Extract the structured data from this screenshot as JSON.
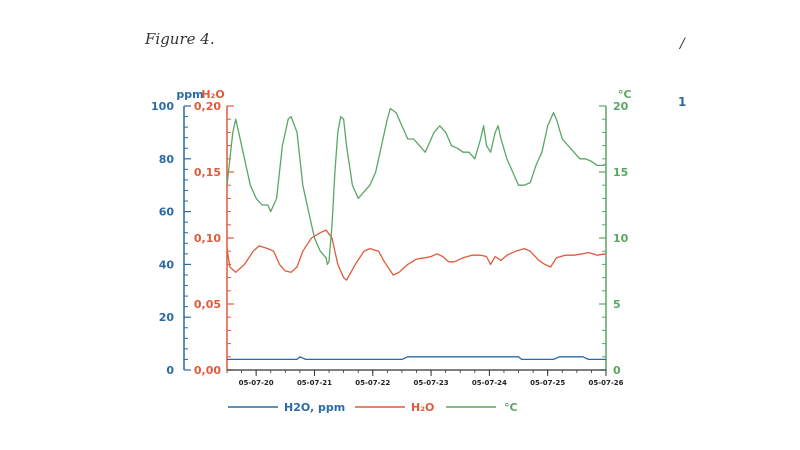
{
  "caption": "Figure 4.",
  "edge_marks": [
    "/",
    "1"
  ],
  "colors": {
    "ppm": "#2a6aa8",
    "h2o": "#e05a3a",
    "temp": "#5aa665",
    "axis_text_blue": "#2a6aa8"
  },
  "chart_data": {
    "type": "line",
    "title": "",
    "axes": {
      "ppm": {
        "unit": "ppm",
        "range": [
          0,
          100
        ],
        "ticks": [
          "0",
          "20",
          "40",
          "60",
          "80",
          "100"
        ]
      },
      "h2o": {
        "unit": "H₂O",
        "range": [
          0,
          0.2
        ],
        "ticks": [
          "0,00",
          "0,05",
          "0,10",
          "0,15",
          "0,20"
        ]
      },
      "temp": {
        "unit": "°C",
        "range": [
          0,
          20
        ],
        "ticks": [
          "0",
          "5",
          "10",
          "15",
          "20"
        ]
      }
    },
    "x": {
      "range": [
        0,
        6.5
      ],
      "ticks": [
        "05-07-20",
        "05-07-21",
        "05-07-22",
        "05-07-23",
        "05-07-24",
        "05-07-25",
        "05-07-26"
      ]
    },
    "series": [
      {
        "name": "H2O, ppm",
        "axis": "ppm",
        "color": "#2a6aa8",
        "points": [
          [
            0,
            4
          ],
          [
            1.2,
            4
          ],
          [
            1.25,
            5
          ],
          [
            1.35,
            4
          ],
          [
            3.0,
            4
          ],
          [
            3.1,
            5
          ],
          [
            5.0,
            5
          ],
          [
            5.05,
            4
          ],
          [
            5.6,
            4
          ],
          [
            5.7,
            5
          ],
          [
            6.1,
            5
          ],
          [
            6.2,
            4
          ],
          [
            6.5,
            4
          ]
        ]
      },
      {
        "name": "H₂O",
        "axis": "h2o",
        "color": "#e05a3a",
        "points": [
          [
            0,
            0.092
          ],
          [
            0.05,
            0.078
          ],
          [
            0.15,
            0.074
          ],
          [
            0.3,
            0.08
          ],
          [
            0.45,
            0.09
          ],
          [
            0.55,
            0.094
          ],
          [
            0.7,
            0.092
          ],
          [
            0.8,
            0.09
          ],
          [
            0.9,
            0.08
          ],
          [
            1.0,
            0.075
          ],
          [
            1.1,
            0.074
          ],
          [
            1.2,
            0.078
          ],
          [
            1.3,
            0.09
          ],
          [
            1.45,
            0.1
          ],
          [
            1.6,
            0.104
          ],
          [
            1.7,
            0.106
          ],
          [
            1.8,
            0.1
          ],
          [
            1.9,
            0.08
          ],
          [
            2.0,
            0.07
          ],
          [
            2.05,
            0.068
          ],
          [
            2.2,
            0.08
          ],
          [
            2.35,
            0.09
          ],
          [
            2.45,
            0.092
          ],
          [
            2.6,
            0.09
          ],
          [
            2.7,
            0.082
          ],
          [
            2.85,
            0.072
          ],
          [
            2.95,
            0.074
          ],
          [
            3.1,
            0.08
          ],
          [
            3.25,
            0.084
          ],
          [
            3.4,
            0.085
          ],
          [
            3.5,
            0.086
          ],
          [
            3.6,
            0.088
          ],
          [
            3.7,
            0.086
          ],
          [
            3.8,
            0.082
          ],
          [
            3.9,
            0.082
          ],
          [
            4.05,
            0.085
          ],
          [
            4.2,
            0.087
          ],
          [
            4.35,
            0.087
          ],
          [
            4.45,
            0.086
          ],
          [
            4.52,
            0.08
          ],
          [
            4.6,
            0.086
          ],
          [
            4.7,
            0.083
          ],
          [
            4.8,
            0.087
          ],
          [
            4.95,
            0.09
          ],
          [
            5.1,
            0.092
          ],
          [
            5.2,
            0.09
          ],
          [
            5.35,
            0.083
          ],
          [
            5.45,
            0.08
          ],
          [
            5.55,
            0.078
          ],
          [
            5.65,
            0.085
          ],
          [
            5.8,
            0.087
          ],
          [
            5.95,
            0.087
          ],
          [
            6.1,
            0.088
          ],
          [
            6.2,
            0.089
          ],
          [
            6.35,
            0.087
          ],
          [
            6.5,
            0.088
          ]
        ]
      },
      {
        "name": "°C",
        "axis": "temp",
        "color": "#5aa665",
        "points": [
          [
            0,
            14
          ],
          [
            0.05,
            16
          ],
          [
            0.1,
            18
          ],
          [
            0.15,
            19
          ],
          [
            0.2,
            18
          ],
          [
            0.3,
            16
          ],
          [
            0.4,
            14
          ],
          [
            0.5,
            13
          ],
          [
            0.6,
            12.5
          ],
          [
            0.7,
            12.5
          ],
          [
            0.75,
            12
          ],
          [
            0.85,
            13
          ],
          [
            0.95,
            17
          ],
          [
            1.05,
            19
          ],
          [
            1.1,
            19.2
          ],
          [
            1.2,
            18
          ],
          [
            1.3,
            14
          ],
          [
            1.4,
            12
          ],
          [
            1.5,
            10
          ],
          [
            1.6,
            9
          ],
          [
            1.7,
            8.5
          ],
          [
            1.72,
            8
          ],
          [
            1.75,
            8.2
          ],
          [
            1.8,
            11
          ],
          [
            1.85,
            15
          ],
          [
            1.9,
            18
          ],
          [
            1.95,
            19.2
          ],
          [
            2.0,
            19
          ],
          [
            2.05,
            17
          ],
          [
            2.15,
            14
          ],
          [
            2.25,
            13
          ],
          [
            2.35,
            13.5
          ],
          [
            2.45,
            14
          ],
          [
            2.55,
            15
          ],
          [
            2.65,
            17
          ],
          [
            2.75,
            19
          ],
          [
            2.8,
            19.8
          ],
          [
            2.9,
            19.5
          ],
          [
            3.0,
            18.5
          ],
          [
            3.1,
            17.5
          ],
          [
            3.2,
            17.5
          ],
          [
            3.3,
            17
          ],
          [
            3.4,
            16.5
          ],
          [
            3.45,
            17
          ],
          [
            3.55,
            18
          ],
          [
            3.65,
            18.5
          ],
          [
            3.75,
            18
          ],
          [
            3.85,
            17
          ],
          [
            3.95,
            16.8
          ],
          [
            4.05,
            16.5
          ],
          [
            4.15,
            16.5
          ],
          [
            4.25,
            16
          ],
          [
            4.35,
            17.5
          ],
          [
            4.4,
            18.5
          ],
          [
            4.45,
            17
          ],
          [
            4.52,
            16.5
          ],
          [
            4.6,
            18
          ],
          [
            4.65,
            18.5
          ],
          [
            4.7,
            17.5
          ],
          [
            4.8,
            16
          ],
          [
            4.9,
            15
          ],
          [
            5.0,
            14
          ],
          [
            5.1,
            14
          ],
          [
            5.2,
            14.2
          ],
          [
            5.3,
            15.5
          ],
          [
            5.4,
            16.5
          ],
          [
            5.5,
            18.5
          ],
          [
            5.6,
            19.5
          ],
          [
            5.65,
            19
          ],
          [
            5.75,
            17.5
          ],
          [
            5.85,
            17
          ],
          [
            5.95,
            16.5
          ],
          [
            6.05,
            16
          ],
          [
            6.15,
            16
          ],
          [
            6.25,
            15.8
          ],
          [
            6.35,
            15.5
          ],
          [
            6.45,
            15.5
          ],
          [
            6.5,
            15.6
          ]
        ]
      }
    ],
    "legend": {
      "placement": "bottom",
      "entries": [
        "H2O, ppm",
        "H₂O",
        "°C"
      ]
    },
    "grid": false
  }
}
